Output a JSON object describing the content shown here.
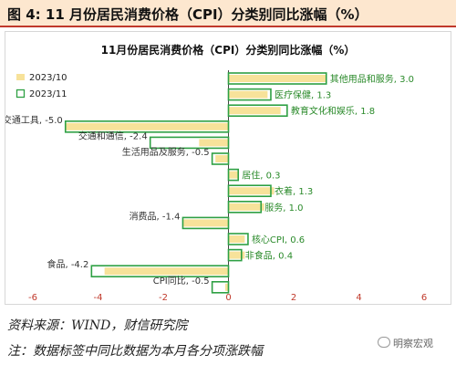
{
  "figure_title": "图 4: 11 月份居民消费价格（CPI）分类别同比涨幅（%）",
  "source_text": "资料来源：WIND，财信研究院",
  "note_text": "注：数据标签中同比数据为本月各分项涨跌幅",
  "watermark": "明察宏观",
  "colors": {
    "prev_fill": "#f7e29a",
    "current_outline": "#2ea043",
    "label_positive": "#2a8a2a",
    "label_negative": "#333333",
    "title_band": "#fde7cf",
    "title_rule": "#c0392b"
  },
  "chart_data": {
    "type": "bar",
    "orientation": "horizontal",
    "title": "11月份居民消费价格（CPI）分类别同比涨幅（%）",
    "xlim": [
      -6,
      6
    ],
    "xticks": [
      "-6",
      "-4",
      "-2",
      "0",
      "2",
      "4",
      "6"
    ],
    "legend": {
      "placement": "top-left"
    },
    "series": [
      {
        "name": "2023/10",
        "style": "filled",
        "values": [
          3.0,
          1.2,
          1.6,
          -5.0,
          -0.9,
          -0.4,
          0.3,
          1.4,
          1.1,
          -1.4,
          0.5,
          0.5,
          -3.8,
          -0.1
        ]
      },
      {
        "name": "2023/11",
        "style": "outline",
        "values": [
          3.0,
          1.3,
          1.8,
          -5.0,
          -2.4,
          -0.5,
          0.3,
          1.3,
          1.0,
          -1.4,
          0.6,
          0.4,
          -4.2,
          -0.5
        ]
      }
    ],
    "categories": [
      "其他用品和服务",
      "医疗保健",
      "教育文化和娱乐",
      "交通工具",
      "交通和通信",
      "生活用品及服务",
      "居住",
      "衣着",
      "服务",
      "消费品",
      "核心CPI",
      "非食品",
      "食品",
      "CPI同比"
    ],
    "data_labels": [
      "其他用品和服务, 3.0",
      "医疗保健, 1.3",
      "教育文化和娱乐, 1.8",
      "交通工具, -5.0",
      "交通和通信, -2.4",
      "生活用品及服务, -0.5",
      "居住, 0.3",
      "衣着, 1.3",
      "服务, 1.0",
      "消费品, -1.4",
      "核心CPI, 0.6",
      "非食品, 0.4",
      "食品, -4.2",
      "CPI同比, -0.5"
    ]
  }
}
